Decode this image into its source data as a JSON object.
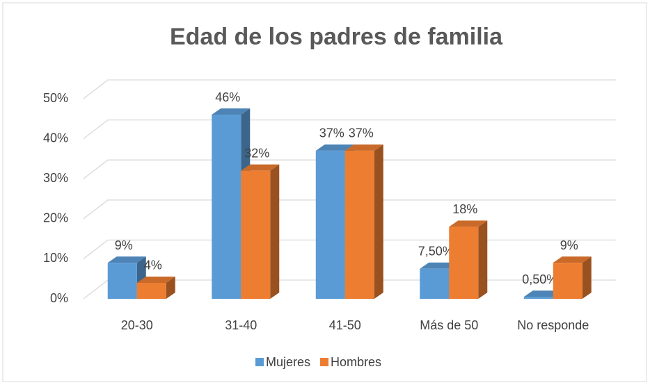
{
  "chart_data": {
    "type": "bar3d",
    "title": "Edad de los padres de familia",
    "categories": [
      "20-30",
      "31-40",
      "41-50",
      "Más de 50",
      "No responde"
    ],
    "series": [
      {
        "name": "Mujeres",
        "color": "#5b9bd5",
        "values": [
          9,
          46,
          37,
          7.5,
          0.5
        ],
        "value_labels": [
          "9%",
          "46%",
          "37%",
          "7,50%",
          "0,50%"
        ]
      },
      {
        "name": "Hombres",
        "color": "#ed7d31",
        "values": [
          4,
          32,
          37,
          18,
          9
        ],
        "value_labels": [
          "4%",
          "32%",
          "37%",
          "18%",
          "9%"
        ]
      }
    ],
    "ylim": [
      0,
      50
    ],
    "yticks": [
      {
        "value": 0,
        "label": "0%"
      },
      {
        "value": 10,
        "label": "10%"
      },
      {
        "value": 20,
        "label": "20%"
      },
      {
        "value": 30,
        "label": "30%"
      },
      {
        "value": 40,
        "label": "40%"
      },
      {
        "value": 50,
        "label": "50%"
      }
    ],
    "grid": true,
    "legend": "bottom"
  }
}
